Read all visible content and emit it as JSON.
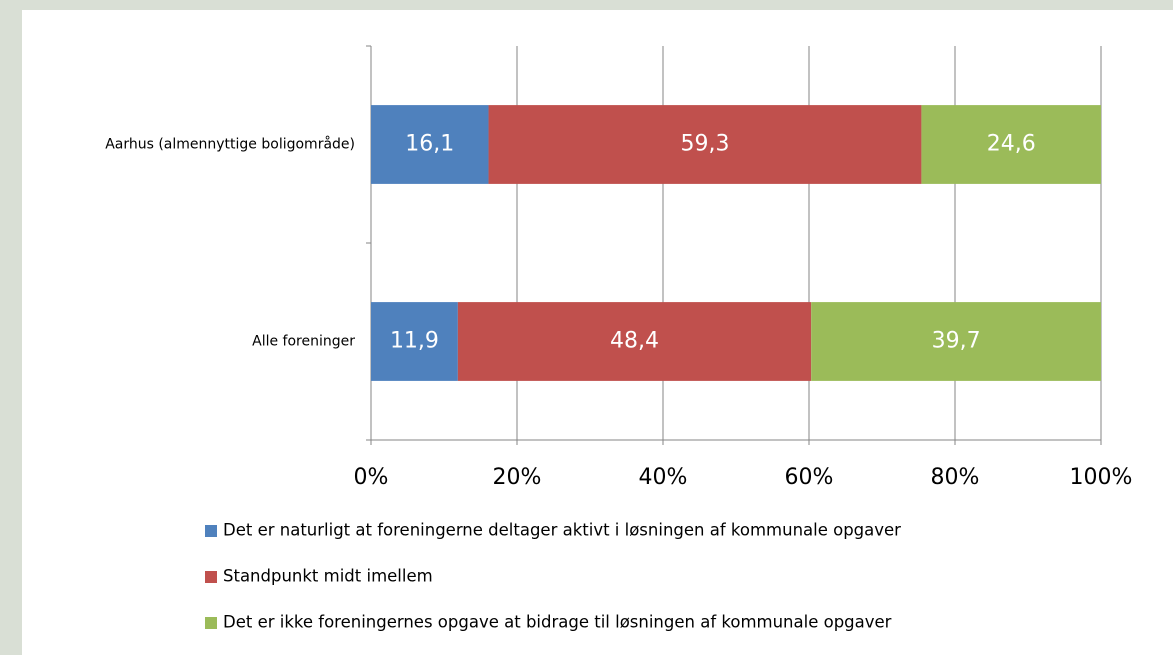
{
  "chart_data": {
    "type": "stacked-bar-horizontal",
    "categories": [
      "Aarhus (almennyttige boligområde)",
      "Alle foreninger"
    ],
    "series": [
      {
        "name": "Det er naturligt at foreningerne deltager aktivt i løsningen af kommunale opgaver",
        "color": "#4f81bd",
        "values": [
          16.1,
          11.9
        ],
        "value_labels": [
          "16,1",
          "11,9"
        ]
      },
      {
        "name": "Standpunkt midt imellem",
        "color": "#c0504d",
        "values": [
          59.3,
          48.4
        ],
        "value_labels": [
          "59,3",
          "48,4"
        ]
      },
      {
        "name": "Det er ikke foreningernes opgave at bidrage til løsningen af kommunale opgaver",
        "color": "#9bbb59",
        "values": [
          24.6,
          39.7
        ],
        "value_labels": [
          "24,6",
          "39,7"
        ]
      }
    ],
    "xlim": [
      0,
      100
    ],
    "xticks": [
      {
        "value": 0,
        "label": "0%"
      },
      {
        "value": 20,
        "label": "20%"
      },
      {
        "value": 40,
        "label": "40%"
      },
      {
        "value": 60,
        "label": "60%"
      },
      {
        "value": 80,
        "label": "80%"
      },
      {
        "value": 100,
        "label": "100%"
      }
    ],
    "grid": true,
    "legend": "bottom"
  }
}
